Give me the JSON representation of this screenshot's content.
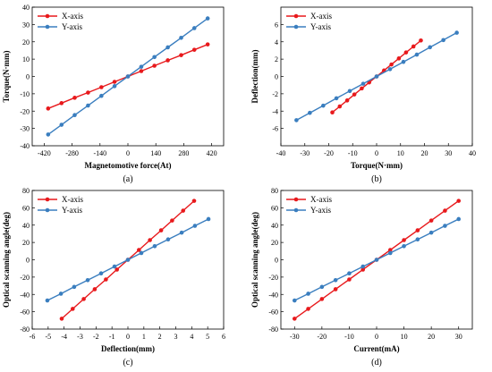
{
  "colors": {
    "x_axis": "#e8191c",
    "y_axis": "#3a7ebf"
  },
  "chart_data": [
    {
      "type": "line",
      "caption": "(a)",
      "xlabel": "Magnetomotive force(At)",
      "ylabel": "Torque(N·mm)",
      "xlim": [
        -480,
        480
      ],
      "ylim": [
        -40,
        40
      ],
      "xticks": [
        -420,
        -280,
        -140,
        0,
        140,
        280,
        420
      ],
      "yticks": [
        -40,
        -30,
        -20,
        -10,
        0,
        10,
        20,
        30,
        40
      ],
      "legend": "top-left",
      "series": [
        {
          "name": "X-axis",
          "x": [
            -400,
            -333,
            -267,
            -200,
            -133,
            -67,
            0,
            67,
            133,
            200,
            267,
            333,
            400
          ],
          "y": [
            -18.5,
            -15.4,
            -12.3,
            -9.3,
            -6.2,
            -3.1,
            0,
            3.1,
            6.2,
            9.3,
            12.3,
            15.4,
            18.5
          ]
        },
        {
          "name": "Y-axis",
          "x": [
            -400,
            -333,
            -267,
            -200,
            -133,
            -67,
            0,
            67,
            133,
            200,
            267,
            333,
            400
          ],
          "y": [
            -33.5,
            -27.9,
            -22.3,
            -16.8,
            -11.2,
            -5.6,
            0,
            5.6,
            11.2,
            16.8,
            22.3,
            27.9,
            33.5
          ]
        }
      ]
    },
    {
      "type": "line",
      "caption": "(b)",
      "xlabel": "Torque(N·mm)",
      "ylabel": "Deflection(mm)",
      "xlim": [
        -40,
        40
      ],
      "ylim": [
        -8,
        8
      ],
      "xticks": [
        -40,
        -30,
        -20,
        -10,
        0,
        10,
        20,
        30,
        40
      ],
      "yticks": [
        -6,
        -4,
        -2,
        0,
        2,
        4,
        6
      ],
      "legend": "top-left",
      "series": [
        {
          "name": "X-axis",
          "x": [
            -18.5,
            -15.4,
            -12.3,
            -9.3,
            -6.2,
            -3.1,
            0,
            3.1,
            6.2,
            9.3,
            12.3,
            15.4,
            18.5
          ],
          "y": [
            -4.15,
            -3.46,
            -2.77,
            -2.08,
            -1.38,
            -0.69,
            0,
            0.69,
            1.38,
            2.08,
            2.77,
            3.46,
            4.15
          ]
        },
        {
          "name": "Y-axis",
          "x": [
            -33.5,
            -27.9,
            -22.3,
            -16.8,
            -11.2,
            -5.6,
            0,
            5.6,
            11.2,
            16.8,
            22.3,
            27.9,
            33.5
          ],
          "y": [
            -5.05,
            -4.2,
            -3.37,
            -2.52,
            -1.68,
            -0.84,
            0,
            0.84,
            1.68,
            2.52,
            3.37,
            4.2,
            5.05
          ]
        }
      ]
    },
    {
      "type": "line",
      "caption": "(c)",
      "xlabel": "Deflection(mm)",
      "ylabel": "Optical scanning angle(deg)",
      "xlim": [
        -6,
        6
      ],
      "ylim": [
        -80,
        80
      ],
      "xticks": [
        -6,
        -5,
        -4,
        -3,
        -2,
        -1,
        0,
        1,
        2,
        3,
        4,
        5,
        6
      ],
      "yticks": [
        -80,
        -60,
        -40,
        -20,
        0,
        20,
        40,
        60,
        80
      ],
      "legend": "top-left",
      "series": [
        {
          "name": "X-axis",
          "x": [
            -4.15,
            -3.46,
            -2.77,
            -2.08,
            -1.38,
            -0.69,
            0,
            0.69,
            1.38,
            2.08,
            2.77,
            3.46,
            4.15
          ],
          "y": [
            -68,
            -56.7,
            -45.3,
            -34,
            -22.7,
            -11.3,
            0,
            11.3,
            22.7,
            34,
            45.3,
            56.7,
            68
          ]
        },
        {
          "name": "Y-axis",
          "x": [
            -5.05,
            -4.2,
            -3.37,
            -2.52,
            -1.68,
            -0.84,
            0,
            0.84,
            1.68,
            2.52,
            3.37,
            4.2,
            5.05
          ],
          "y": [
            -47,
            -39.2,
            -31.3,
            -23.5,
            -15.7,
            -7.8,
            0,
            7.8,
            15.7,
            23.5,
            31.3,
            39.2,
            47
          ]
        }
      ]
    },
    {
      "type": "line",
      "caption": "(d)",
      "xlabel": "Current(mA)",
      "ylabel": "Optical scanning angle(deg)",
      "xlim": [
        -35,
        35
      ],
      "ylim": [
        -80,
        80
      ],
      "xticks": [
        -30,
        -20,
        -10,
        0,
        10,
        20,
        30
      ],
      "yticks": [
        -80,
        -60,
        -40,
        -20,
        0,
        20,
        40,
        60,
        80
      ],
      "legend": "top-left",
      "series": [
        {
          "name": "X-axis",
          "x": [
            -30,
            -25,
            -20,
            -15,
            -10,
            -5,
            0,
            5,
            10,
            15,
            20,
            25,
            30
          ],
          "y": [
            -68,
            -56.7,
            -45.3,
            -34,
            -22.7,
            -11.3,
            0,
            11.3,
            22.7,
            34,
            45.3,
            56.7,
            68
          ]
        },
        {
          "name": "Y-axis",
          "x": [
            -30,
            -25,
            -20,
            -15,
            -10,
            -5,
            0,
            5,
            10,
            15,
            20,
            25,
            30
          ],
          "y": [
            -47,
            -39.2,
            -31.3,
            -23.5,
            -15.7,
            -7.8,
            0,
            7.8,
            15.7,
            23.5,
            31.3,
            39.2,
            47
          ]
        }
      ]
    }
  ]
}
